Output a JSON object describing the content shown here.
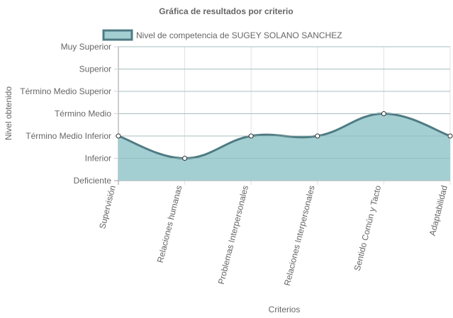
{
  "chart_data": {
    "type": "area",
    "title": "Gráfica de resultados por criterio",
    "xlabel": "Criterios",
    "ylabel": "Nivel obtenido",
    "y_levels": [
      "Deficiente",
      "Inferior",
      "Término Medio Inferior",
      "Término Medio",
      "Término Medio Superior",
      "Superior",
      "Muy Superior"
    ],
    "categories": [
      "Supervisión",
      "Relaciones humanas",
      "Problemas Interpersonales",
      "Relaciones Interpersonales",
      "Sentido Común y Tacto",
      "Adaptabilidad"
    ],
    "series": [
      {
        "name": "Nivel de competencia de SUGEY SOLANO SANCHEZ",
        "values": [
          "Término Medio Inferior",
          "Inferior",
          "Término Medio Inferior",
          "Término Medio Inferior",
          "Término Medio",
          "Término Medio Inferior"
        ],
        "fill_color": "#a3cfd2",
        "line_color": "#4f7b83"
      }
    ],
    "grid": true,
    "legend_position": "top"
  }
}
